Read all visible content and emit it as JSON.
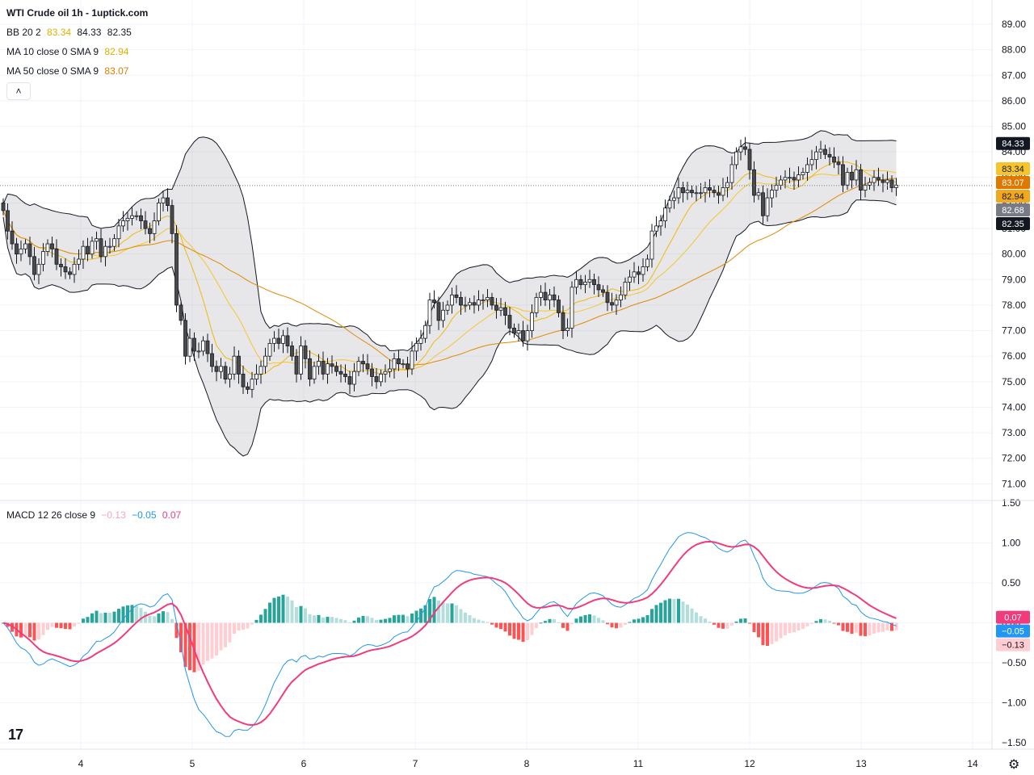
{
  "header": {
    "title": "WTI Crude oil  1h - 1uptick.com"
  },
  "legend": {
    "bb": {
      "label": "BB 20 2",
      "basis": "83.34",
      "upper": "84.33",
      "lower": "82.35",
      "basis_color": "#f0b90b"
    },
    "ma10": {
      "label": "MA 10 close 0 SMA 9",
      "value": "82.94",
      "color": "#f0b90b"
    },
    "ma50": {
      "label": "MA 50 close 0 SMA 9",
      "value": "83.07",
      "color": "#e08a00"
    },
    "macd": {
      "label": "MACD 12 26 close 9",
      "hist": "−0.13",
      "macd": "−0.05",
      "signal": "0.07"
    }
  },
  "collapse_glyph": "˄",
  "logo_text": "17",
  "gear_glyph": "⚙",
  "chart_data": [
    {
      "type": "candlestick",
      "title": "WTI Crude oil",
      "x_ticks": [
        "4",
        "5",
        "6",
        "7",
        "8",
        "11",
        "12",
        "13",
        "14"
      ],
      "y_ticks": [
        "89.00",
        "88.00",
        "87.00",
        "86.00",
        "85.00",
        "84.00",
        "83.00",
        "82.00",
        "81.00",
        "80.00",
        "79.00",
        "78.00",
        "77.00",
        "76.00",
        "75.00",
        "74.00",
        "73.00",
        "72.00",
        "71.00"
      ],
      "ylim": [
        70.6,
        89.0
      ],
      "last_price": "82.68",
      "price_labels": [
        {
          "text": "84.33",
          "value": 84.33,
          "bg": "#131722",
          "fg": "#ffffff"
        },
        {
          "text": "83.34",
          "value": 83.34,
          "bg": "#f7c52b",
          "fg": "#131722"
        },
        {
          "text": "83.07",
          "value": 83.07,
          "bg": "#e07800",
          "fg": "#ffffff"
        },
        {
          "text": "82.94",
          "value": 82.94,
          "bg": "#f2a81d",
          "fg": "#131722"
        },
        {
          "text": "82.68",
          "value": 82.68,
          "bg": "#787b86",
          "fg": "#ffffff"
        },
        {
          "text": "82.35",
          "value": 82.35,
          "bg": "#131722",
          "fg": "#ffffff"
        }
      ],
      "close": [
        81.7,
        80.9,
        80.4,
        80.0,
        80.2,
        80.4,
        79.9,
        79.2,
        79.6,
        80.1,
        80.4,
        80.2,
        79.6,
        79.5,
        79.3,
        79.2,
        79.6,
        79.8,
        80.3,
        80.0,
        80.5,
        80.6,
        79.9,
        80.3,
        80.3,
        80.6,
        81.1,
        81.3,
        81.4,
        81.5,
        81.5,
        81.3,
        81.0,
        80.8,
        81.3,
        82.0,
        82.2,
        81.9,
        80.8,
        78.0,
        77.4,
        76.0,
        76.7,
        76.2,
        76.2,
        76.6,
        76.1,
        75.6,
        75.4,
        75.6,
        75.1,
        75.3,
        76.0,
        75.3,
        74.8,
        74.7,
        75.1,
        75.3,
        75.6,
        76.0,
        76.5,
        76.7,
        76.5,
        76.8,
        76.4,
        76.0,
        75.3,
        76.4,
        75.9,
        75.1,
        75.6,
        75.8,
        75.3,
        75.7,
        75.6,
        75.4,
        75.3,
        75.2,
        74.9,
        75.4,
        75.8,
        75.7,
        75.5,
        75.2,
        75.0,
        75.3,
        75.4,
        75.5,
        75.9,
        75.7,
        75.7,
        75.5,
        76.2,
        76.5,
        76.7,
        77.2,
        78.2,
        78.1,
        77.4,
        77.8,
        78.0,
        78.4,
        78.3,
        78.0,
        78.0,
        78.1,
        78.0,
        78.2,
        78.2,
        78.3,
        78.0,
        77.8,
        77.9,
        77.6,
        77.1,
        76.9,
        77.0,
        76.6,
        77.0,
        77.7,
        78.3,
        78.5,
        78.2,
        78.4,
        78.2,
        77.7,
        77.0,
        77.1,
        78.7,
        79.0,
        78.8,
        78.9,
        79.0,
        78.8,
        78.6,
        78.5,
        78.1,
        78.0,
        78.2,
        78.4,
        78.9,
        79.1,
        79.3,
        79.2,
        79.5,
        79.8,
        80.9,
        81.1,
        81.3,
        81.8,
        82.1,
        82.2,
        82.6,
        82.4,
        82.5,
        82.4,
        82.4,
        82.4,
        82.6,
        82.5,
        82.4,
        82.3,
        82.6,
        82.8,
        83.5,
        84.0,
        84.2,
        84.1,
        83.3,
        82.3,
        82.4,
        81.5,
        82.2,
        82.5,
        82.7,
        82.9,
        83.0,
        83.0,
        82.9,
        83.1,
        83.2,
        83.5,
        83.7,
        84.0,
        84.1,
        83.9,
        83.8,
        83.6,
        83.5,
        82.7,
        83.2,
        82.9,
        83.3,
        82.5,
        82.7,
        82.8,
        83.0,
        82.9,
        82.8,
        82.9,
        82.6,
        82.7
      ],
      "bollinger_20_2": {
        "basis": "83.34",
        "upper": "84.33",
        "lower": "82.35"
      },
      "ma10": "82.94",
      "ma50": "83.07"
    },
    {
      "type": "macd",
      "title": "MACD 12 26 close 9",
      "y_ticks": [
        "1.50",
        "1.00",
        "0.50",
        "0.00",
        "−0.50",
        "−1.00",
        "−1.50"
      ],
      "ylim": [
        -1.55,
        1.5
      ],
      "last_values": {
        "macd": "−0.05",
        "signal": "0.07",
        "hist": "−0.13"
      },
      "value_labels": [
        {
          "text": "0.07",
          "value": 0.07,
          "bg": "#f23b7c",
          "fg": "#ffffff"
        },
        {
          "text": "−0.05",
          "value": -0.05,
          "bg": "#2196f3",
          "fg": "#ffffff"
        },
        {
          "text": "−0.13",
          "value": -0.13,
          "bg": "#ffcdd2",
          "fg": "#131722"
        }
      ]
    }
  ]
}
